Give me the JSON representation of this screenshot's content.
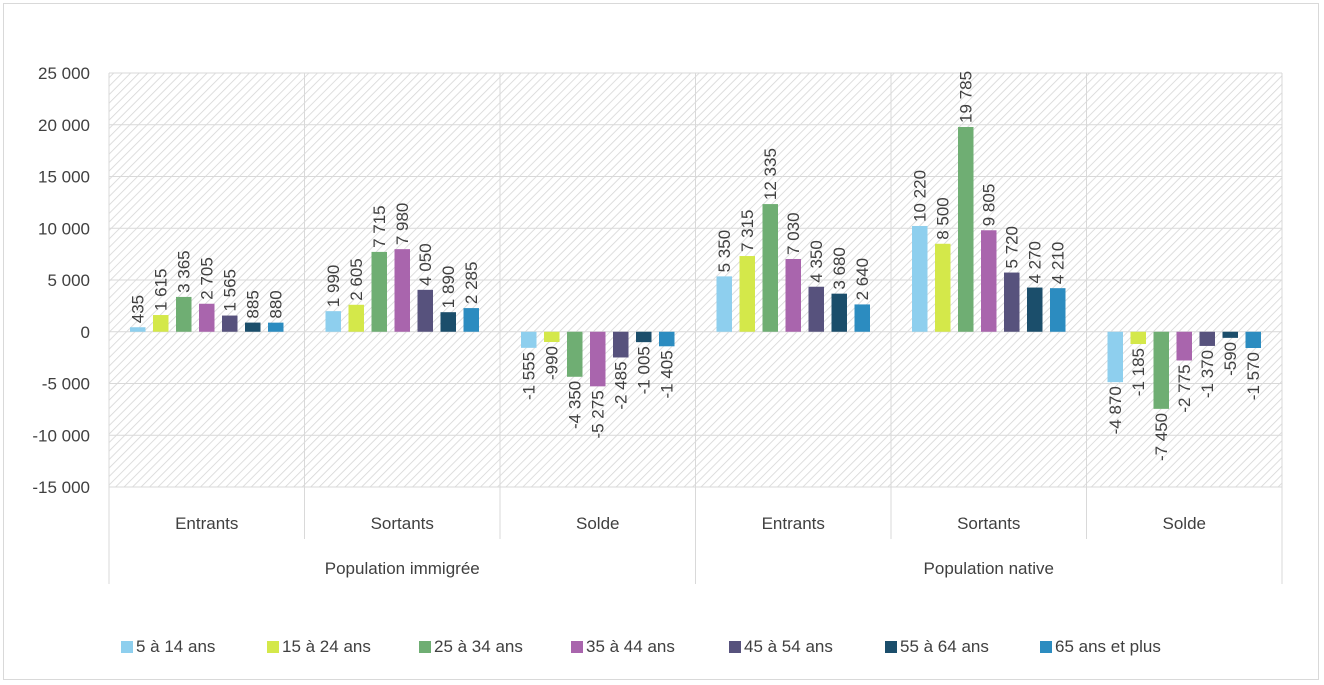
{
  "chart_data": {
    "type": "bar",
    "title": "",
    "xlabel": "",
    "ylabel": "",
    "ylim": [
      -15000,
      25000
    ],
    "yticks": [
      25000,
      20000,
      15000,
      10000,
      5000,
      0,
      -5000,
      -10000,
      -15000
    ],
    "ytick_labels": [
      "25 000",
      "20 000",
      "15 000",
      "10 000",
      "5 000",
      "0",
      "-5 000",
      "-10 000",
      "-15 000"
    ],
    "groups": [
      {
        "label": "Population immigrée",
        "categories": [
          "Entrants",
          "Sortants",
          "Solde"
        ]
      },
      {
        "label": "Population native",
        "categories": [
          "Entrants",
          "Sortants",
          "Solde"
        ]
      }
    ],
    "categories": [
      "Entrants",
      "Sortants",
      "Solde",
      "Entrants",
      "Sortants",
      "Solde"
    ],
    "grid": true,
    "legend_position": "bottom",
    "series": [
      {
        "name": "5 à 14 ans",
        "color": "#8ecfee",
        "values": [
          435,
          1990,
          -1555,
          5350,
          10220,
          -4870
        ],
        "labels": [
          "435",
          "1 990",
          "-1 555",
          "5 350",
          "10 220",
          "-4 870"
        ]
      },
      {
        "name": "15 à 24 ans",
        "color": "#d4e84a",
        "values": [
          1615,
          2605,
          -990,
          7315,
          8500,
          -1185
        ],
        "labels": [
          "1 615",
          "2 605",
          "-990",
          "7 315",
          "8 500",
          "-1 185"
        ]
      },
      {
        "name": "25 à 34 ans",
        "color": "#6fae73",
        "values": [
          3365,
          7715,
          -4350,
          12335,
          19785,
          -7450
        ],
        "labels": [
          "3 365",
          "7 715",
          "-4 350",
          "12 335",
          "19 785",
          "-7 450"
        ]
      },
      {
        "name": "35 à 44 ans",
        "color": "#a965ad",
        "values": [
          2705,
          7980,
          -5275,
          7030,
          9805,
          -2775
        ],
        "labels": [
          "2 705",
          "7 980",
          "-5 275",
          "7 030",
          "9 805",
          "-2 775"
        ]
      },
      {
        "name": "45 à 54 ans",
        "color": "#57527d",
        "values": [
          1565,
          4050,
          -2485,
          4350,
          5720,
          -1370
        ],
        "labels": [
          "1 565",
          "4 050",
          "-2 485",
          "4 350",
          "5 720",
          "-1 370"
        ]
      },
      {
        "name": "55 à 64 ans",
        "color": "#1b4e6b",
        "values": [
          885,
          1890,
          -1005,
          3680,
          4270,
          -590
        ],
        "labels": [
          "885",
          "1 890",
          "-1 005",
          "3 680",
          "4 270",
          "-590"
        ]
      },
      {
        "name": "65 ans et plus",
        "color": "#2c8cc0",
        "values": [
          880,
          2285,
          -1405,
          2640,
          4210,
          -1570
        ],
        "labels": [
          "880",
          "2 285",
          "-1 405",
          "2 640",
          "4 210",
          "-1 570"
        ]
      }
    ]
  }
}
